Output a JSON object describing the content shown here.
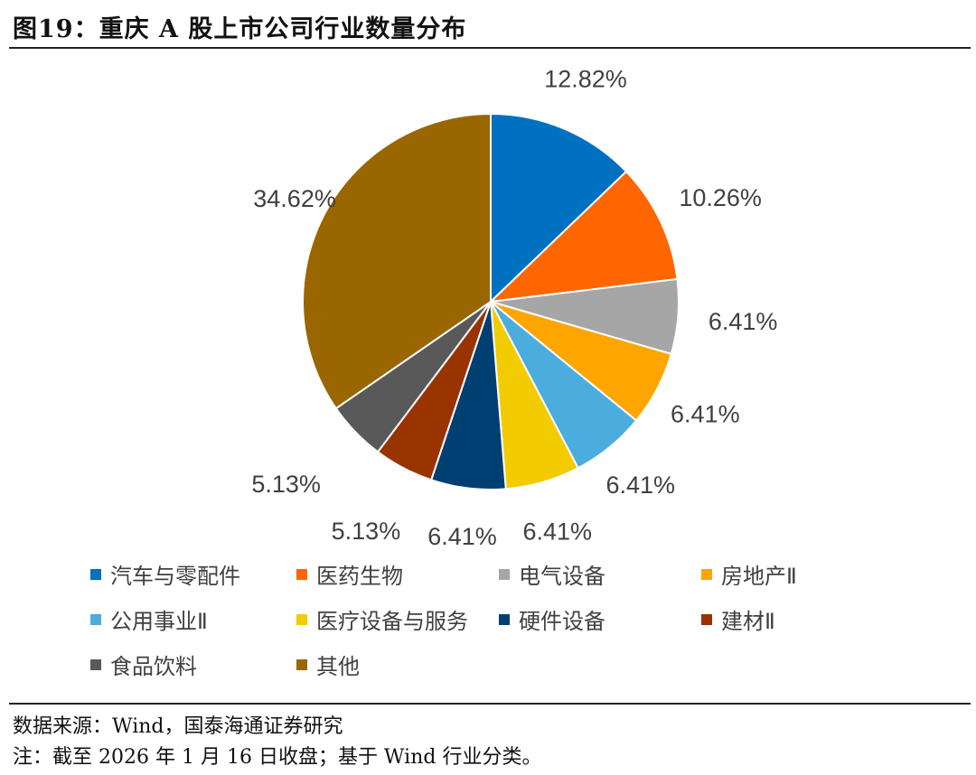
{
  "title": "图19：重庆 A 股上市公司行业数量分布",
  "chart_data": {
    "type": "pie",
    "start_angle": "12 o'clock",
    "direction": "clockwise",
    "legend_position": "bottom",
    "slices": [
      {
        "name": "汽车与零配件",
        "value": 12.82,
        "label": "12.82%",
        "color": "#0070C0"
      },
      {
        "name": "医药生物",
        "value": 10.26,
        "label": "10.26%",
        "color": "#FF6600"
      },
      {
        "name": "电气设备",
        "value": 6.41,
        "label": "6.41%",
        "color": "#A6A6A6"
      },
      {
        "name": "房地产Ⅱ",
        "value": 6.41,
        "label": "6.41%",
        "color": "#FFA500"
      },
      {
        "name": "公用事业Ⅱ",
        "value": 6.41,
        "label": "6.41%",
        "color": "#4BACDE"
      },
      {
        "name": "医疗设备与服务",
        "value": 6.41,
        "label": "6.41%",
        "color": "#F2CC00"
      },
      {
        "name": "硬件设备",
        "value": 6.41,
        "label": "6.41%",
        "color": "#003F72"
      },
      {
        "name": "建材Ⅱ",
        "value": 5.13,
        "label": "5.13%",
        "color": "#993300"
      },
      {
        "name": "食品饮料",
        "value": 5.13,
        "label": "5.13%",
        "color": "#595959"
      },
      {
        "name": "其他",
        "value": 34.62,
        "label": "34.62%",
        "color": "#996600"
      }
    ]
  },
  "notes": {
    "source": "数据来源：Wind，国泰海通证券研究",
    "remark": "注：截至 2026 年 1 月 16 日收盘；基于 Wind 行业分类。"
  }
}
